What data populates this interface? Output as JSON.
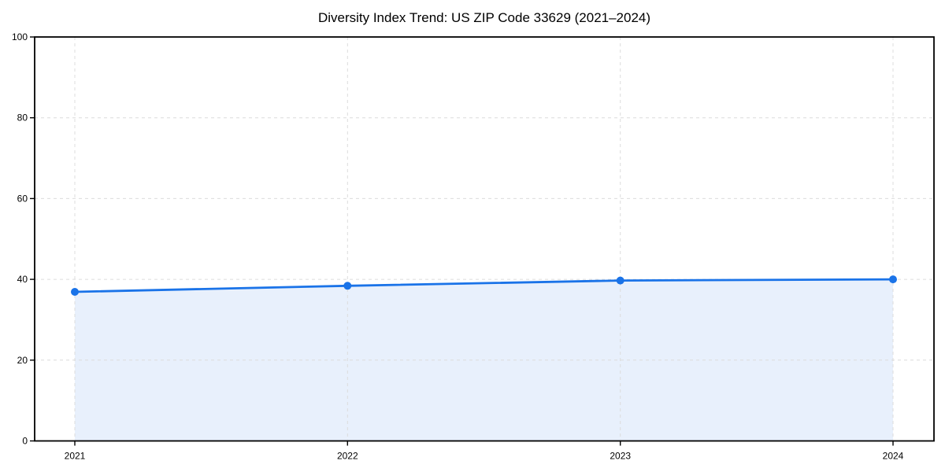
{
  "chart_data": {
    "type": "line",
    "title": "Diversity Index Trend: US ZIP Code 33629 (2021–2024)",
    "x": [
      2021,
      2022,
      2023,
      2024
    ],
    "series": [
      {
        "name": "Diversity Index",
        "values": [
          36.9,
          38.4,
          39.7,
          40.0
        ]
      }
    ],
    "xlabel": "",
    "ylabel": "",
    "ylim": [
      0,
      100
    ],
    "yticks": [
      0,
      20,
      40,
      60,
      80,
      100
    ],
    "xticks": [
      "2021",
      "2022",
      "2023",
      "2024"
    ],
    "grid": true,
    "grid_style": "dashed",
    "legend": false,
    "area_fill": true,
    "marker": "circle",
    "colors": {
      "line": "#1a73e8",
      "marker": "#1a73e8",
      "area_fill": "#e8f0fc",
      "grid": "#dcdcdc",
      "axis": "#000000",
      "text": "#000000",
      "background": "#ffffff"
    }
  }
}
